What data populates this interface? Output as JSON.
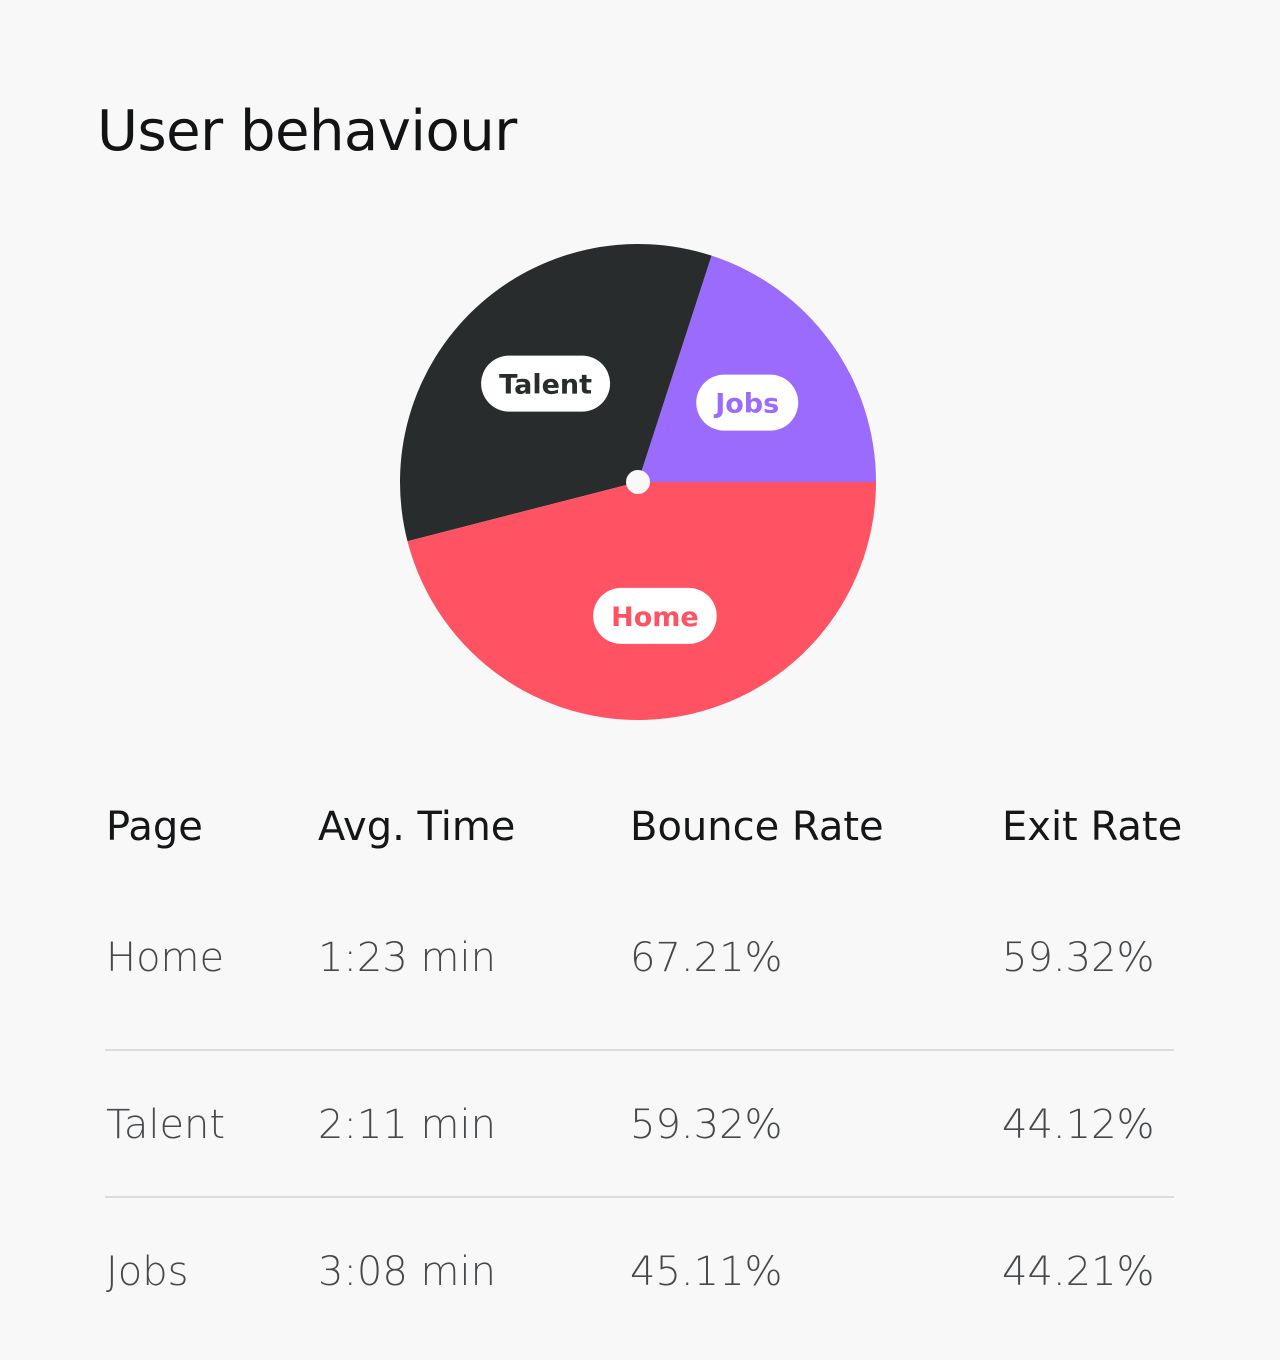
{
  "title": "User behaviour",
  "chart_data": {
    "type": "pie",
    "title": "User behaviour",
    "slices": [
      {
        "label": "Jobs",
        "value": 20.0,
        "color": "#9b6bfd",
        "label_color": "#9b6bfd"
      },
      {
        "label": "Talent",
        "value": 34.0,
        "color": "#282c2c",
        "label_color": "#282c2c"
      },
      {
        "label": "Home",
        "value": 46.0,
        "color": "#ff5364",
        "label_color": "#ff5364"
      }
    ],
    "start_angle_deg": 0,
    "direction": "counter-clockwise-from-3-oclock",
    "center_dot_color": "#f8f8f8"
  },
  "table": {
    "headers": [
      "Page",
      "Avg. Time",
      "Bounce Rate",
      "Exit Rate"
    ],
    "rows": [
      [
        "Home",
        "1:23 min",
        "67.21%",
        "59.32%"
      ],
      [
        "Talent",
        "2:11 min",
        "59.32%",
        "44.12%"
      ],
      [
        "Jobs",
        "3:08 min",
        "45.11%",
        "44.21%"
      ]
    ]
  }
}
